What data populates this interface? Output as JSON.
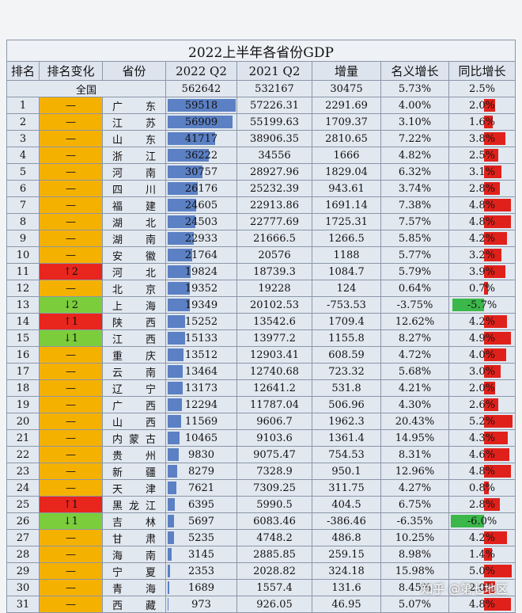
{
  "table": {
    "title": "2022上半年各省份GDP",
    "columns": [
      "排名",
      "排名变化",
      "省份",
      "2022 Q2",
      "2021 Q2",
      "增量",
      "名义增长",
      "同比增长"
    ],
    "total": [
      "全国",
      "562642",
      "532167",
      "30475",
      "5.73%",
      "2.5%"
    ],
    "rows": [
      [
        "1",
        "—",
        "广东",
        "59518",
        "57226.31",
        "2291.69",
        "4.00%",
        "2.0%"
      ],
      [
        "2",
        "—",
        "江苏",
        "56909",
        "55199.63",
        "1709.37",
        "3.10%",
        "1.6%"
      ],
      [
        "3",
        "—",
        "山东",
        "41717",
        "38906.35",
        "2810.65",
        "7.22%",
        "3.8%"
      ],
      [
        "4",
        "—",
        "浙江",
        "36222",
        "34556",
        "1666",
        "4.82%",
        "2.5%"
      ],
      [
        "5",
        "—",
        "河南",
        "30757",
        "28927.96",
        "1829.04",
        "6.32%",
        "3.1%"
      ],
      [
        "6",
        "—",
        "四川",
        "26176",
        "25232.39",
        "943.61",
        "3.74%",
        "2.8%"
      ],
      [
        "7",
        "—",
        "福建",
        "24605",
        "22913.86",
        "1691.14",
        "7.38%",
        "4.8%"
      ],
      [
        "8",
        "—",
        "湖北",
        "24503",
        "22777.69",
        "1725.31",
        "7.57%",
        "4.8%"
      ],
      [
        "9",
        "—",
        "湖南",
        "22933",
        "21666.5",
        "1266.5",
        "5.85%",
        "4.2%"
      ],
      [
        "10",
        "—",
        "安徽",
        "21764",
        "20576",
        "1188",
        "5.77%",
        "3.2%"
      ],
      [
        "11",
        "↑2",
        "河北",
        "19824",
        "18739.3",
        "1084.7",
        "5.79%",
        "3.9%"
      ],
      [
        "12",
        "—",
        "北京",
        "19352",
        "19228",
        "124",
        "0.64%",
        "0.7%"
      ],
      [
        "13",
        "↓2",
        "上海",
        "19349",
        "20102.53",
        "-753.53",
        "-3.75%",
        "-5.7%"
      ],
      [
        "14",
        "↑1",
        "陕西",
        "15252",
        "13542.6",
        "1709.4",
        "12.62%",
        "4.2%"
      ],
      [
        "15",
        "↓1",
        "江西",
        "15133",
        "13977.2",
        "1155.8",
        "8.27%",
        "4.9%"
      ],
      [
        "16",
        "—",
        "重庆",
        "13512",
        "12903.41",
        "608.59",
        "4.72%",
        "4.0%"
      ],
      [
        "17",
        "—",
        "云南",
        "13464",
        "12740.68",
        "723.32",
        "5.68%",
        "3.0%"
      ],
      [
        "18",
        "—",
        "辽宁",
        "13173",
        "12641.2",
        "531.8",
        "4.21%",
        "2.0%"
      ],
      [
        "19",
        "—",
        "广西",
        "12294",
        "11787.04",
        "506.96",
        "4.30%",
        "2.6%"
      ],
      [
        "20",
        "—",
        "山西",
        "11569",
        "9606.7",
        "1962.3",
        "20.43%",
        "5.2%"
      ],
      [
        "21",
        "—",
        "内蒙古",
        "10465",
        "9103.6",
        "1361.4",
        "14.95%",
        "4.3%"
      ],
      [
        "22",
        "—",
        "贵州",
        "9830",
        "9075.47",
        "754.53",
        "8.31%",
        "4.6%"
      ],
      [
        "23",
        "—",
        "新疆",
        "8279",
        "7328.9",
        "950.1",
        "12.96%",
        "4.8%"
      ],
      [
        "24",
        "—",
        "天津",
        "7621",
        "7309.25",
        "311.75",
        "4.27%",
        "0.8%"
      ],
      [
        "25",
        "↑1",
        "黑龙江",
        "6395",
        "5990.5",
        "404.5",
        "6.75%",
        "2.8%"
      ],
      [
        "26",
        "↓1",
        "吉林",
        "5697",
        "6083.46",
        "-386.46",
        "-6.35%",
        "-6.0%"
      ],
      [
        "27",
        "—",
        "甘肃",
        "5235",
        "4748.2",
        "486.8",
        "10.25%",
        "4.2%"
      ],
      [
        "28",
        "—",
        "海南",
        "3145",
        "2885.85",
        "259.15",
        "8.98%",
        "1.4%"
      ],
      [
        "29",
        "—",
        "宁夏",
        "2353",
        "2028.82",
        "324.18",
        "15.98%",
        "5.0%"
      ],
      [
        "30",
        "—",
        "青海",
        "1689",
        "1557.4",
        "131.6",
        "8.45%",
        "2.0%"
      ],
      [
        "31",
        "—",
        "西藏",
        "973",
        "926.05",
        "46.95",
        "5.07%",
        "4.8%"
      ]
    ]
  },
  "watermark": "知乎 @第七地区"
}
